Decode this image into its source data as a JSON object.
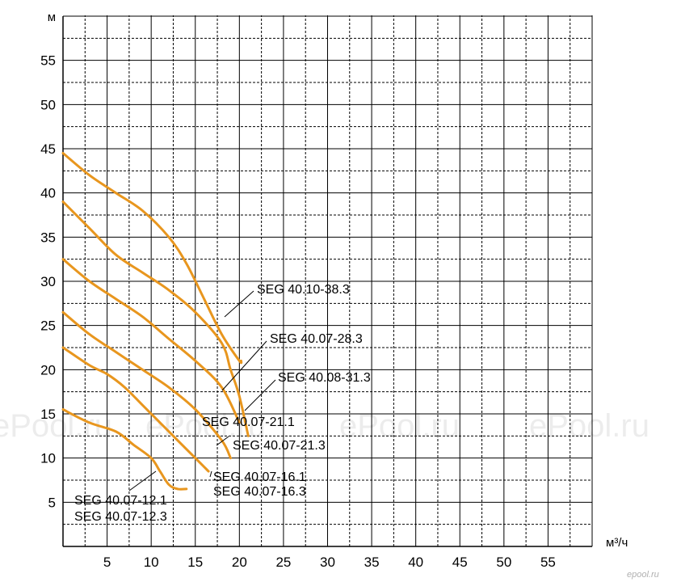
{
  "chart_data": {
    "type": "line",
    "title": "",
    "xlabel": "м³/ч",
    "ylabel": "м",
    "xlim": [
      0,
      60
    ],
    "ylim": [
      0,
      60
    ],
    "xticks": [
      5,
      10,
      15,
      20,
      25,
      30,
      35,
      40,
      45,
      50,
      55
    ],
    "yticks": [
      5,
      10,
      15,
      20,
      25,
      30,
      35,
      40,
      45,
      50,
      55
    ],
    "grid": true,
    "curve_color": "#E8961E",
    "series": [
      {
        "name": "SEG 40.10-38.3",
        "x": [
          0,
          3,
          6,
          9,
          12,
          14,
          16,
          18,
          20,
          20.2
        ],
        "y": [
          44.5,
          42,
          40,
          38,
          35,
          32,
          28,
          24,
          21,
          21
        ]
      },
      {
        "name": "SEG 40.07-28.3",
        "x": [
          0,
          3,
          6,
          9,
          12,
          15,
          18,
          19,
          20,
          21
        ],
        "y": [
          39,
          36,
          33,
          31,
          29,
          26.5,
          23,
          20,
          17,
          12.5
        ]
      },
      {
        "name": "SEG 40.08-31.3",
        "x": [
          0,
          3,
          6,
          9,
          12,
          15,
          18,
          20
        ],
        "y": [
          32.5,
          30,
          28,
          26,
          23.5,
          21,
          18,
          14
        ]
      },
      {
        "name": "SEG 40.07-21.1 / SEG 40.07-21.3",
        "x": [
          0,
          3,
          6,
          9,
          12,
          15,
          18,
          19
        ],
        "y": [
          26.5,
          24,
          22,
          20,
          18,
          15.5,
          12,
          10
        ]
      },
      {
        "name": "SEG 40.07-16.1 / SEG 40.07-16.3",
        "x": [
          0,
          3,
          5,
          7,
          9,
          11,
          13,
          15,
          16.5
        ],
        "y": [
          22.5,
          20.5,
          19.5,
          18,
          16,
          14,
          12,
          10,
          8.5
        ]
      },
      {
        "name": "SEG 40.07-12.1 / SEG 40.07-12.3",
        "x": [
          0,
          3,
          6,
          8,
          10,
          11,
          12,
          13,
          14
        ],
        "y": [
          15.5,
          14,
          13,
          11.5,
          10,
          8.5,
          7,
          6.5,
          6.5
        ]
      }
    ],
    "annotations": [
      "SEG 40.10-38.3",
      "SEG 40.07-28.3",
      "SEG 40.08-31.3",
      "SEG 40.07-21.1",
      "SEG 40.07-21.3",
      "SEG 40.07-16.1",
      "SEG 40.07-16.3",
      "SEG 40.07-12.1",
      "SEG 40.07-12.3"
    ]
  },
  "watermark": {
    "text": "ePool.ru",
    "small": "epool.ru"
  }
}
